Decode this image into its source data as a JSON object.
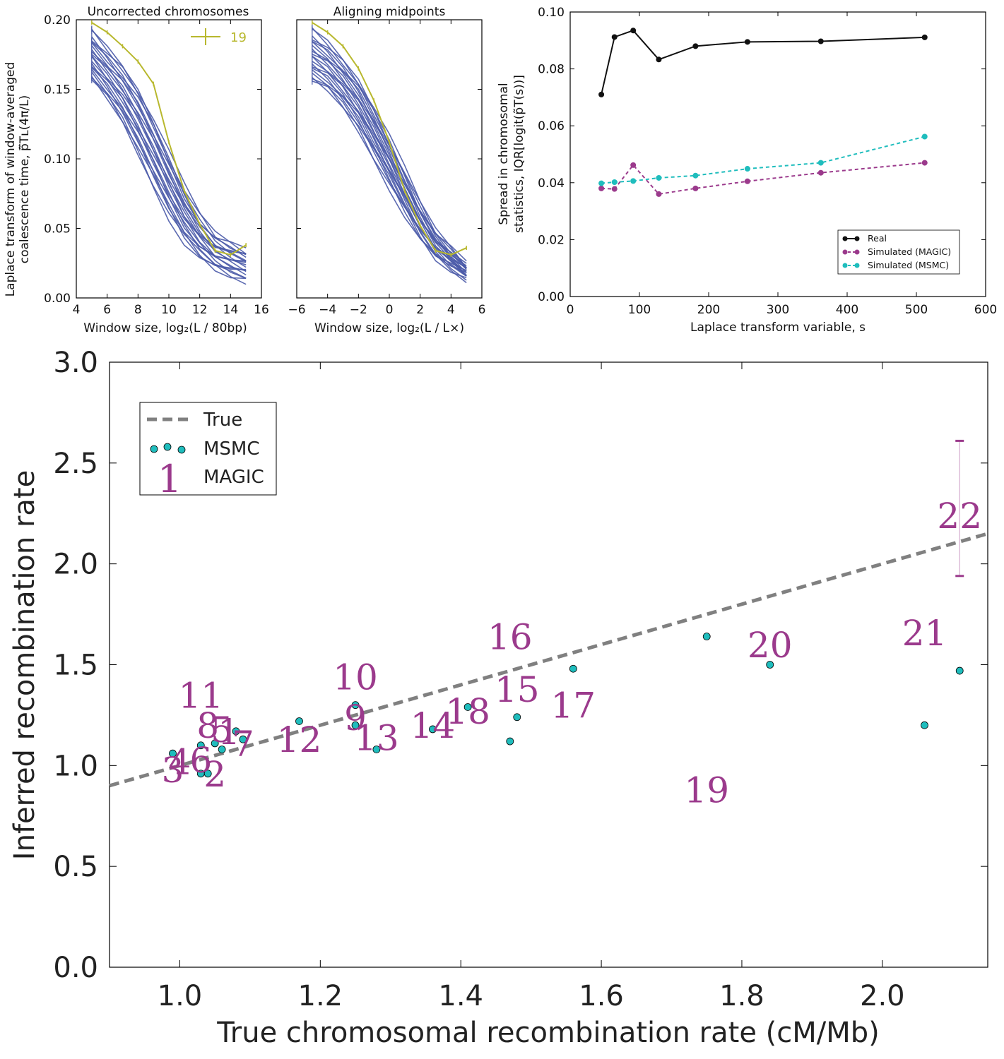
{
  "colors": {
    "blue_lines": "#4a5aa8",
    "olive": "#b8b82e",
    "black_series": "#111111",
    "magic": "#9b3a8c",
    "msmc": "#1fbdbd",
    "true_line": "#808080"
  },
  "chart_data": [
    {
      "id": "panelA",
      "type": "line",
      "title": "Uncorrected chromosomes",
      "xlabel": "Window size, log₂(L / 80bp)",
      "ylabel_line1": "Laplace transform of window-averaged",
      "ylabel_line2": "coalescence time, p̃̅Tʟ(4π/L)",
      "xlim": [
        4,
        16
      ],
      "ylim": [
        0.0,
        0.2
      ],
      "xticks": [
        "4",
        "6",
        "8",
        "10",
        "12",
        "14",
        "16"
      ],
      "yticks": [
        "0.00",
        "0.05",
        "0.10",
        "0.15",
        "0.20"
      ],
      "legend": {
        "label": "19",
        "placement": "top-right"
      },
      "x": [
        5,
        6,
        7,
        8,
        9,
        10,
        11,
        12,
        13,
        14,
        15
      ],
      "highlight_series": {
        "name": "19",
        "values": [
          0.198,
          0.191,
          0.181,
          0.17,
          0.154,
          0.112,
          0.077,
          0.053,
          0.034,
          0.031,
          0.038
        ]
      },
      "base_series_max": [
        0.192,
        0.18,
        0.168,
        0.152,
        0.13,
        0.105,
        0.08,
        0.06,
        0.046,
        0.04,
        0.035
      ],
      "base_series_min": [
        0.156,
        0.142,
        0.125,
        0.103,
        0.08,
        0.058,
        0.04,
        0.028,
        0.02,
        0.015,
        0.012
      ],
      "n_base_series": 21
    },
    {
      "id": "panelB",
      "type": "line",
      "title": "Aligning midpoints",
      "xlabel": "Window size, log₂(L / L×)",
      "xlim": [
        -6,
        6
      ],
      "ylim": [
        0.0,
        0.2
      ],
      "xticks": [
        "−6",
        "−4",
        "−2",
        "0",
        "2",
        "4",
        "6"
      ],
      "x": [
        -5,
        -4,
        -3,
        -2,
        -1,
        0,
        1,
        2,
        3,
        4,
        5
      ],
      "highlight_series": {
        "name": "19",
        "values": [
          0.198,
          0.191,
          0.181,
          0.165,
          0.142,
          0.112,
          0.077,
          0.052,
          0.034,
          0.031,
          0.036
        ]
      },
      "base_series_max": [
        0.193,
        0.184,
        0.172,
        0.158,
        0.138,
        0.116,
        0.092,
        0.068,
        0.048,
        0.036,
        0.024
      ],
      "base_series_min": [
        0.155,
        0.148,
        0.136,
        0.12,
        0.1,
        0.08,
        0.06,
        0.042,
        0.028,
        0.02,
        0.014
      ],
      "n_base_series": 21
    },
    {
      "id": "panelC",
      "type": "line",
      "xlabel": "Laplace transform variable, s",
      "ylabel_line1": "Spread in chromosomal",
      "ylabel_line2": "statistics, IQR[logit(p̃T(s))]",
      "xlim": [
        0,
        600
      ],
      "ylim": [
        0.0,
        0.1
      ],
      "xticks": [
        "0",
        "100",
        "200",
        "300",
        "400",
        "500",
        "600"
      ],
      "yticks": [
        "0.00",
        "0.02",
        "0.04",
        "0.06",
        "0.08",
        "0.10"
      ],
      "x": [
        45,
        64,
        91,
        128,
        181,
        256,
        362,
        512
      ],
      "series": [
        {
          "name": "Real",
          "values": [
            0.071,
            0.0912,
            0.0935,
            0.0833,
            0.088,
            0.0895,
            0.0897,
            0.0911
          ],
          "style": "solid"
        },
        {
          "name": "Simulated (MAGIC)",
          "values": [
            0.038,
            0.0378,
            0.0462,
            0.036,
            0.038,
            0.0405,
            0.0435,
            0.047
          ],
          "style": "dashed"
        },
        {
          "name": "Simulated (MSMC)",
          "values": [
            0.0398,
            0.0402,
            0.0406,
            0.0417,
            0.0425,
            0.0449,
            0.047,
            0.0562
          ],
          "style": "dashed"
        }
      ],
      "legend": {
        "placement": "bottom-right",
        "entries": [
          "Real",
          "Simulated (MAGIC)",
          "Simulated (MSMC)"
        ]
      }
    },
    {
      "id": "panelD",
      "type": "scatter",
      "xlabel": "True chromosomal recombination rate (cM/Mb)",
      "ylabel": "Inferred recombination rate",
      "xlim": [
        0.9,
        2.15
      ],
      "ylim": [
        0.0,
        3.0
      ],
      "xticks": [
        "1.0",
        "1.2",
        "1.4",
        "1.6",
        "1.8",
        "2.0"
      ],
      "yticks": [
        "0.0",
        "0.5",
        "1.0",
        "1.5",
        "2.0",
        "2.5",
        "3.0"
      ],
      "legend": {
        "placement": "top-left",
        "entries": [
          "True",
          "MSMC",
          "MAGIC"
        ],
        "magic_symbol": "1"
      },
      "true_line": {
        "x": [
          0.9,
          2.15
        ],
        "y": [
          0.9,
          2.15
        ]
      },
      "msmc_points": [
        {
          "x": 0.99,
          "y": 1.06
        },
        {
          "x": 1.03,
          "y": 1.1
        },
        {
          "x": 1.05,
          "y": 1.11
        },
        {
          "x": 1.06,
          "y": 1.08
        },
        {
          "x": 1.08,
          "y": 1.17
        },
        {
          "x": 1.09,
          "y": 1.13
        },
        {
          "x": 1.03,
          "y": 0.96
        },
        {
          "x": 1.04,
          "y": 0.96
        },
        {
          "x": 1.17,
          "y": 1.22
        },
        {
          "x": 1.25,
          "y": 1.3
        },
        {
          "x": 1.25,
          "y": 1.2
        },
        {
          "x": 1.28,
          "y": 1.08
        },
        {
          "x": 1.36,
          "y": 1.18
        },
        {
          "x": 1.41,
          "y": 1.29
        },
        {
          "x": 1.47,
          "y": 1.12
        },
        {
          "x": 1.48,
          "y": 1.24
        },
        {
          "x": 1.56,
          "y": 1.48
        },
        {
          "x": 1.75,
          "y": 1.64
        },
        {
          "x": 1.84,
          "y": 1.5
        },
        {
          "x": 2.06,
          "y": 1.2
        },
        {
          "x": 2.11,
          "y": 1.47
        }
      ],
      "magic_labels": [
        {
          "label": "1",
          "x": 1.07,
          "y": 1.17
        },
        {
          "label": "2",
          "x": 1.05,
          "y": 0.96
        },
        {
          "label": "3",
          "x": 0.99,
          "y": 0.98
        },
        {
          "label": "4",
          "x": 1.0,
          "y": 1.02
        },
        {
          "label": "5",
          "x": 1.06,
          "y": 1.18
        },
        {
          "label": "6",
          "x": 1.03,
          "y": 1.03
        },
        {
          "label": "7",
          "x": 1.09,
          "y": 1.11
        },
        {
          "label": "8",
          "x": 1.04,
          "y": 1.2
        },
        {
          "label": "9",
          "x": 1.25,
          "y": 1.24
        },
        {
          "label": "10",
          "x": 1.25,
          "y": 1.44
        },
        {
          "label": "11",
          "x": 1.03,
          "y": 1.35
        },
        {
          "label": "12",
          "x": 1.17,
          "y": 1.13
        },
        {
          "label": "13",
          "x": 1.28,
          "y": 1.14
        },
        {
          "label": "14",
          "x": 1.36,
          "y": 1.2
        },
        {
          "label": "15",
          "x": 1.48,
          "y": 1.38
        },
        {
          "label": "16",
          "x": 1.47,
          "y": 1.64
        },
        {
          "label": "17",
          "x": 1.56,
          "y": 1.3
        },
        {
          "label": "18",
          "x": 1.41,
          "y": 1.27
        },
        {
          "label": "19",
          "x": 1.75,
          "y": 0.88
        },
        {
          "label": "20",
          "x": 1.84,
          "y": 1.6
        },
        {
          "label": "21",
          "x": 2.06,
          "y": 1.66
        },
        {
          "label": "22",
          "x": 2.11,
          "y": 2.24
        }
      ],
      "error_bar_22": {
        "x": 2.11,
        "y_low": 1.94,
        "y_high": 2.61
      }
    }
  ]
}
